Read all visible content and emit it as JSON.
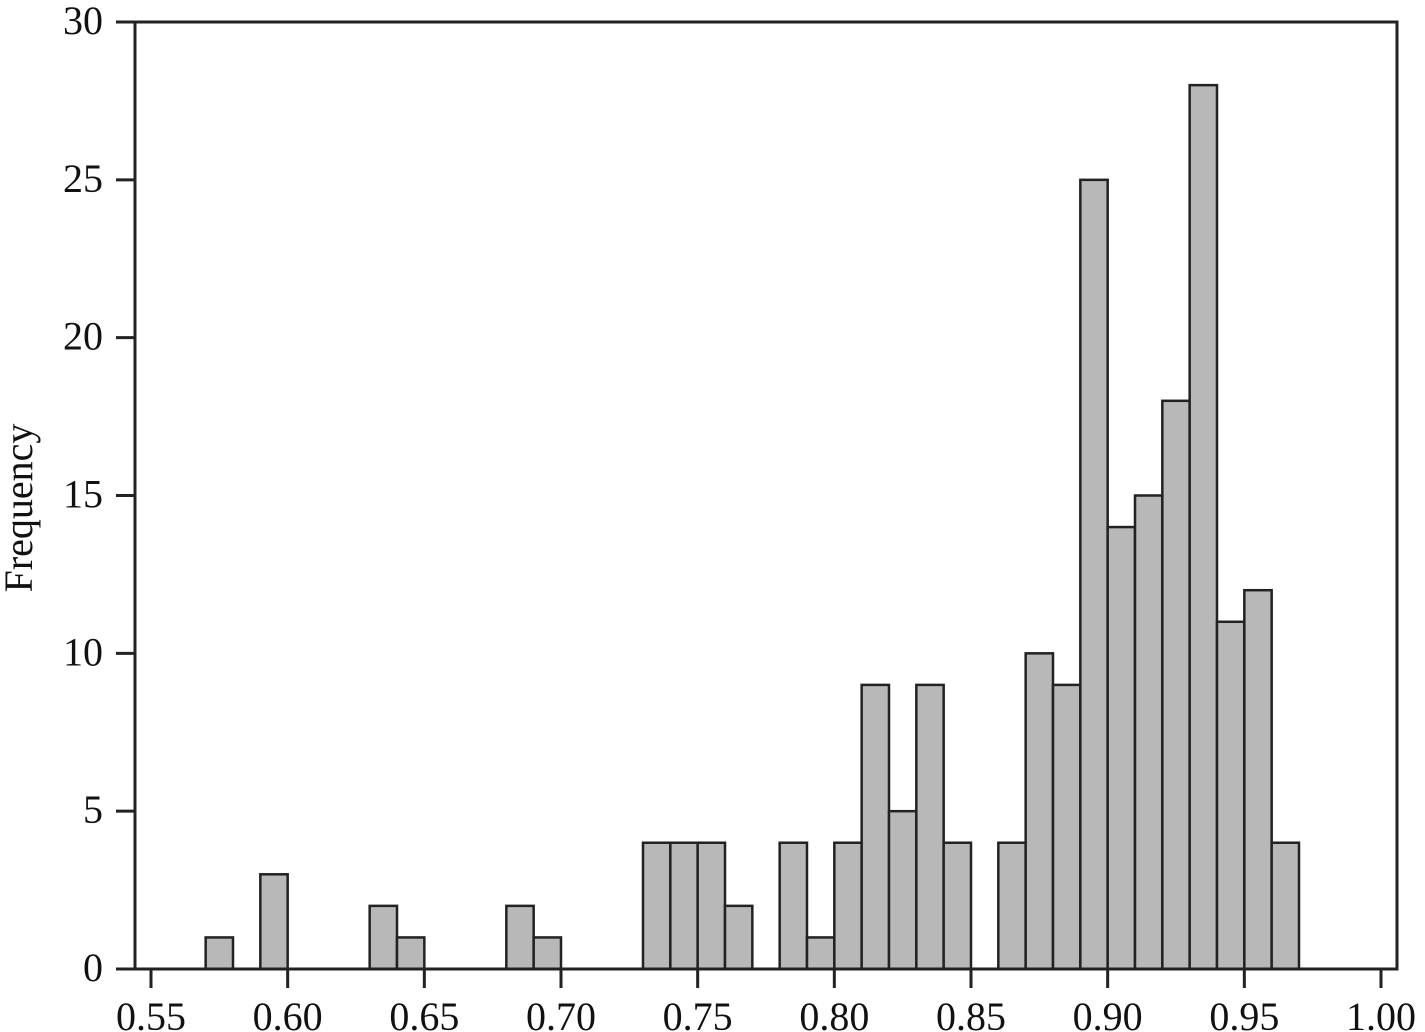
{
  "chart_data": {
    "type": "bar",
    "title": "",
    "xlabel": "",
    "ylabel": "Frequency",
    "xlim": [
      0.55,
      1.0
    ],
    "ylim": [
      0,
      30
    ],
    "bin_width": 0.01,
    "x_ticks": [
      0.55,
      0.6,
      0.65,
      0.7,
      0.75,
      0.8,
      0.85,
      0.9,
      0.95,
      1.0
    ],
    "x_tick_labels": [
      "0.55",
      "0.60",
      "0.65",
      "0.70",
      "0.75",
      "0.80",
      "0.85",
      "0.90",
      "0.95",
      "1.00"
    ],
    "y_ticks": [
      0,
      5,
      10,
      15,
      20,
      25,
      30
    ],
    "y_tick_labels": [
      "0",
      "5",
      "10",
      "15",
      "20",
      "25",
      "30"
    ],
    "grid": false,
    "legend": "none",
    "bar_color": "#b8b8b8",
    "edge_color": "#222222",
    "bins": [
      {
        "x0": 0.57,
        "x1": 0.58,
        "count": 1
      },
      {
        "x0": 0.59,
        "x1": 0.6,
        "count": 3
      },
      {
        "x0": 0.63,
        "x1": 0.64,
        "count": 2
      },
      {
        "x0": 0.64,
        "x1": 0.65,
        "count": 1
      },
      {
        "x0": 0.68,
        "x1": 0.69,
        "count": 2
      },
      {
        "x0": 0.69,
        "x1": 0.7,
        "count": 1
      },
      {
        "x0": 0.73,
        "x1": 0.74,
        "count": 4
      },
      {
        "x0": 0.74,
        "x1": 0.75,
        "count": 4
      },
      {
        "x0": 0.75,
        "x1": 0.76,
        "count": 4
      },
      {
        "x0": 0.76,
        "x1": 0.77,
        "count": 2
      },
      {
        "x0": 0.78,
        "x1": 0.79,
        "count": 4
      },
      {
        "x0": 0.79,
        "x1": 0.8,
        "count": 1
      },
      {
        "x0": 0.8,
        "x1": 0.81,
        "count": 4
      },
      {
        "x0": 0.81,
        "x1": 0.82,
        "count": 9
      },
      {
        "x0": 0.82,
        "x1": 0.83,
        "count": 5
      },
      {
        "x0": 0.83,
        "x1": 0.84,
        "count": 9
      },
      {
        "x0": 0.84,
        "x1": 0.85,
        "count": 4
      },
      {
        "x0": 0.86,
        "x1": 0.87,
        "count": 4
      },
      {
        "x0": 0.87,
        "x1": 0.88,
        "count": 10
      },
      {
        "x0": 0.88,
        "x1": 0.89,
        "count": 9
      },
      {
        "x0": 0.89,
        "x1": 0.9,
        "count": 25
      },
      {
        "x0": 0.9,
        "x1": 0.91,
        "count": 14
      },
      {
        "x0": 0.91,
        "x1": 0.92,
        "count": 15
      },
      {
        "x0": 0.92,
        "x1": 0.93,
        "count": 18
      },
      {
        "x0": 0.93,
        "x1": 0.94,
        "count": 28
      },
      {
        "x0": 0.94,
        "x1": 0.95,
        "count": 11
      },
      {
        "x0": 0.95,
        "x1": 0.96,
        "count": 12
      },
      {
        "x0": 0.96,
        "x1": 0.97,
        "count": 4
      }
    ]
  }
}
